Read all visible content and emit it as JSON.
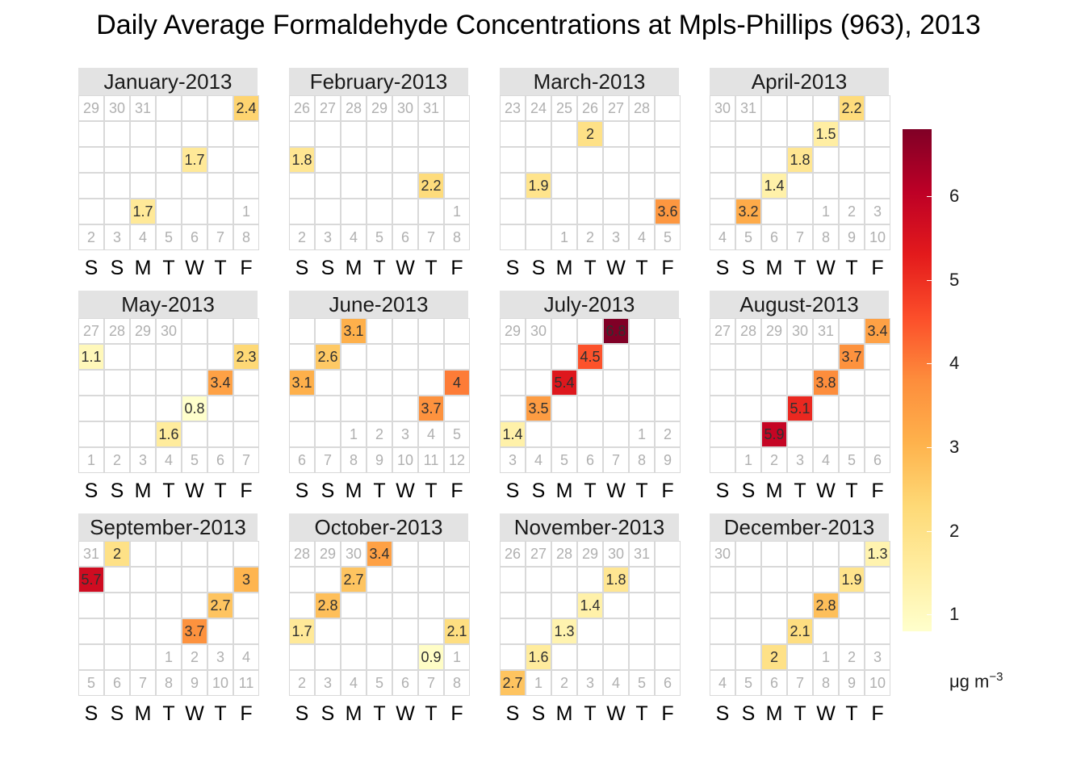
{
  "chart_data": {
    "type": "heatmap",
    "title": "Daily Average Formaldehyde Concentrations at Mpls-Phillips (963), 2013",
    "day_of_week_labels": [
      "S",
      "S",
      "M",
      "T",
      "W",
      "T",
      "F"
    ],
    "legend": {
      "unit_base": "μg m",
      "unit_exponent": "−3",
      "range": [
        0.8,
        6.8
      ],
      "ticks": [
        "1",
        "2",
        "3",
        "4",
        "5",
        "6"
      ],
      "tick_values": [
        1,
        2,
        3,
        4,
        5,
        6
      ],
      "colors": [
        "#ffffcc",
        "#ffeda0",
        "#fed976",
        "#feb24c",
        "#fd8d3c",
        "#fc4e2a",
        "#e31a1c",
        "#bd0026",
        "#800026"
      ],
      "placement": "right"
    },
    "months": [
      {
        "label": "January-2013",
        "year": 2013,
        "month": 1,
        "values": [
          {
            "date": "2013-01-04",
            "value": 2.4
          },
          {
            "date": "2013-01-16",
            "value": 1.7
          },
          {
            "date": "2013-01-28",
            "value": 1.7
          }
        ]
      },
      {
        "label": "February-2013",
        "year": 2013,
        "month": 2,
        "values": [
          {
            "date": "2013-02-09",
            "value": 1.8
          },
          {
            "date": "2013-02-21",
            "value": 2.2
          }
        ]
      },
      {
        "label": "March-2013",
        "year": 2013,
        "month": 3,
        "values": [
          {
            "date": "2013-03-05",
            "value": 2.0
          },
          {
            "date": "2013-03-17",
            "value": 1.9
          },
          {
            "date": "2013-03-29",
            "value": 3.6
          }
        ]
      },
      {
        "label": "April-2013",
        "year": 2013,
        "month": 4,
        "values": [
          {
            "date": "2013-04-04",
            "value": 2.2
          },
          {
            "date": "2013-04-10",
            "value": 1.5
          },
          {
            "date": "2013-04-16",
            "value": 1.8
          },
          {
            "date": "2013-04-22",
            "value": 1.4
          },
          {
            "date": "2013-04-28",
            "value": 3.2
          }
        ]
      },
      {
        "label": "May-2013",
        "year": 2013,
        "month": 5,
        "values": [
          {
            "date": "2013-05-04",
            "value": 1.1
          },
          {
            "date": "2013-05-10",
            "value": 2.3
          },
          {
            "date": "2013-05-16",
            "value": 3.4
          },
          {
            "date": "2013-05-22",
            "value": 0.8
          },
          {
            "date": "2013-05-28",
            "value": 1.6
          }
        ]
      },
      {
        "label": "June-2013",
        "year": 2013,
        "month": 6,
        "values": [
          {
            "date": "2013-06-03",
            "value": 3.1
          },
          {
            "date": "2013-06-09",
            "value": 2.6
          },
          {
            "date": "2013-06-15",
            "value": 3.1
          },
          {
            "date": "2013-06-21",
            "value": 4.0
          },
          {
            "date": "2013-06-27",
            "value": 3.7
          }
        ]
      },
      {
        "label": "July-2013",
        "year": 2013,
        "month": 7,
        "values": [
          {
            "date": "2013-07-03",
            "value": 6.8
          },
          {
            "date": "2013-07-09",
            "value": 4.5
          },
          {
            "date": "2013-07-15",
            "value": 5.4
          },
          {
            "date": "2013-07-21",
            "value": 3.5
          },
          {
            "date": "2013-07-27",
            "value": 1.4
          }
        ]
      },
      {
        "label": "August-2013",
        "year": 2013,
        "month": 8,
        "values": [
          {
            "date": "2013-08-02",
            "value": 3.4
          },
          {
            "date": "2013-08-08",
            "value": 3.7
          },
          {
            "date": "2013-08-14",
            "value": 3.8
          },
          {
            "date": "2013-08-20",
            "value": 5.1
          },
          {
            "date": "2013-08-26",
            "value": 5.9
          }
        ]
      },
      {
        "label": "September-2013",
        "year": 2013,
        "month": 9,
        "values": [
          {
            "date": "2013-09-01",
            "value": 2.0
          },
          {
            "date": "2013-09-07",
            "value": 5.7
          },
          {
            "date": "2013-09-13",
            "value": 3.0
          },
          {
            "date": "2013-09-19",
            "value": 2.7
          },
          {
            "date": "2013-09-25",
            "value": 3.7
          }
        ]
      },
      {
        "label": "October-2013",
        "year": 2013,
        "month": 10,
        "values": [
          {
            "date": "2013-10-01",
            "value": 3.4
          },
          {
            "date": "2013-10-07",
            "value": 2.7
          },
          {
            "date": "2013-10-13",
            "value": 2.8
          },
          {
            "date": "2013-10-19",
            "value": 1.7
          },
          {
            "date": "2013-10-25",
            "value": 2.1
          },
          {
            "date": "2013-10-31",
            "value": 0.9
          }
        ]
      },
      {
        "label": "November-2013",
        "year": 2013,
        "month": 11,
        "values": [
          {
            "date": "2013-11-06",
            "value": 1.8
          },
          {
            "date": "2013-11-12",
            "value": 1.4
          },
          {
            "date": "2013-11-18",
            "value": 1.3
          },
          {
            "date": "2013-11-24",
            "value": 1.6
          },
          {
            "date": "2013-11-30",
            "value": 2.7
          }
        ]
      },
      {
        "label": "December-2013",
        "year": 2013,
        "month": 12,
        "values": [
          {
            "date": "2013-12-06",
            "value": 1.3
          },
          {
            "date": "2013-12-12",
            "value": 1.9
          },
          {
            "date": "2013-12-18",
            "value": 2.8
          },
          {
            "date": "2013-12-24",
            "value": 2.1
          },
          {
            "date": "2013-12-30",
            "value": 2.0
          }
        ]
      }
    ]
  }
}
